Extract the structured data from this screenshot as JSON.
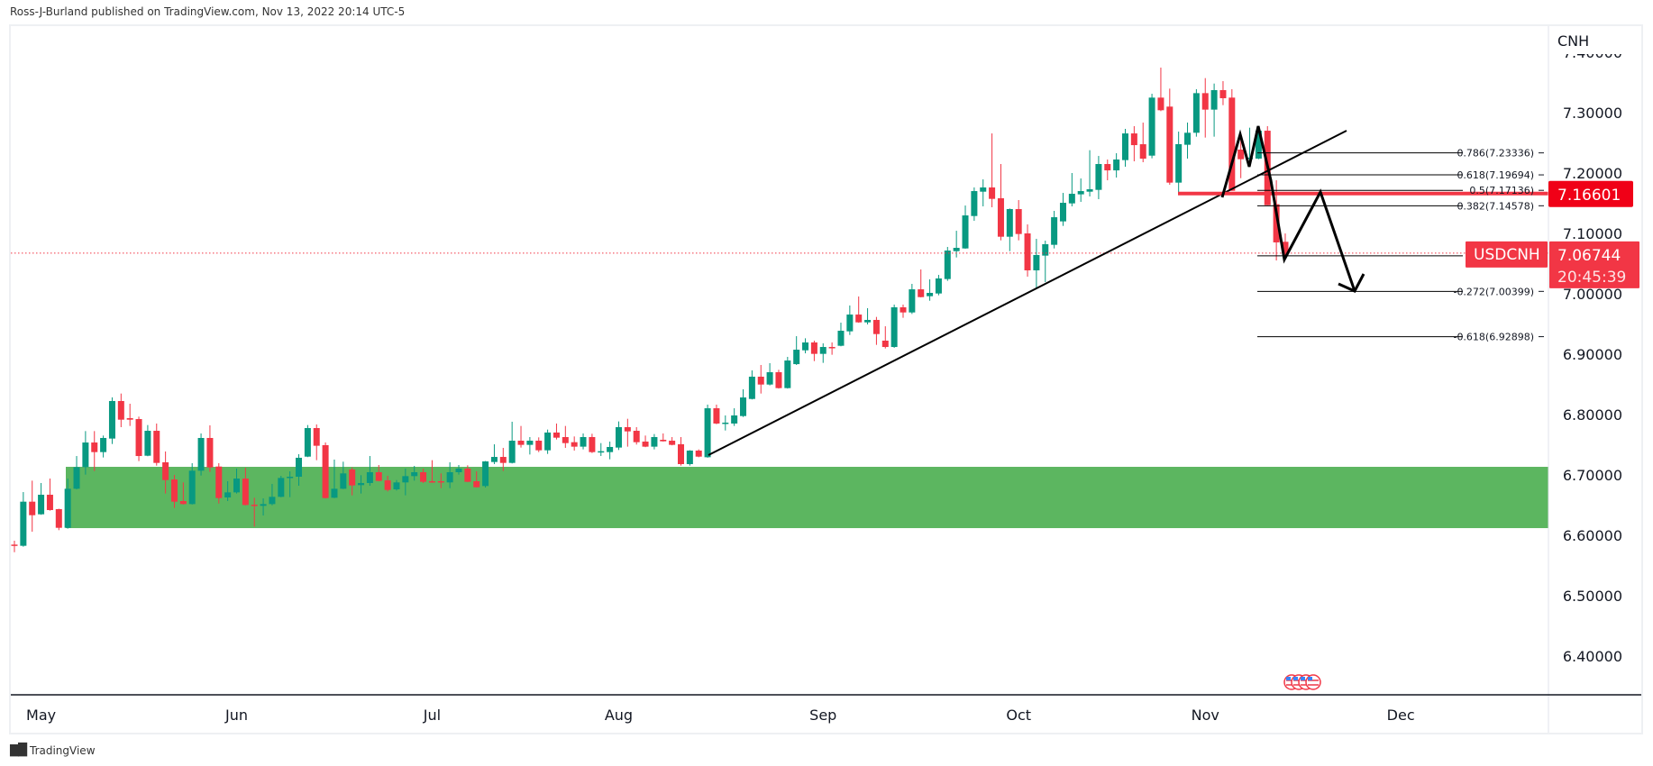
{
  "header": {
    "published": "Ross-J-Burland published on TradingView.com, Nov 13, 2022 20:14 UTC-5"
  },
  "footer": {
    "brand": "TradingView",
    "logo_icon": "tradingview-logo-icon"
  },
  "colors": {
    "up": "#089981",
    "down": "#f23645",
    "zone": "#5cb660",
    "line": "#000000",
    "last_price": "#f23645"
  },
  "chart_data": {
    "type": "candlestick",
    "symbol": "USDCNH",
    "currency_label": "CNH",
    "ylim": [
      6.35,
      7.4
    ],
    "y_ticks": [
      "7.40000",
      "7.30000",
      "7.20000",
      "7.10000",
      "7.00000",
      "6.90000",
      "6.80000",
      "6.70000",
      "6.60000",
      "6.50000",
      "6.40000"
    ],
    "y_tick_values": [
      7.4,
      7.3,
      7.2,
      7.1,
      7.0,
      6.9,
      6.8,
      6.7,
      6.6,
      6.5,
      6.4
    ],
    "x_ticks": [
      "May",
      "Jun",
      "Jul",
      "Aug",
      "Sep",
      "Oct",
      "Nov",
      "Dec"
    ],
    "last_price": {
      "label": "USDCNH",
      "value": "7.06744",
      "price": 7.06744,
      "countdown": "20:45:39"
    },
    "level_line": {
      "value": "7.16601",
      "price": 7.16601
    },
    "support_zone": {
      "top": 6.7134,
      "bottom": 6.6119
    },
    "fib_levels": [
      {
        "label": "0.786(7.23336)",
        "price": 7.23336
      },
      {
        "label": "0.618(7.19694)",
        "price": 7.19694
      },
      {
        "label": "0.5(7.17136)",
        "price": 7.17136
      },
      {
        "label": "0.382(7.14578)",
        "price": 7.14578
      },
      {
        "label": "",
        "price": 7.06296
      },
      {
        "label": "-0.272(7.00399)",
        "price": 7.00399
      },
      {
        "label": "-0.618(6.92898)",
        "price": 6.92898
      }
    ],
    "ohlc": [
      [
        6.5846,
        6.591,
        6.5721,
        6.5836
      ],
      [
        6.5826,
        6.6716,
        6.5811,
        6.6557
      ],
      [
        6.6557,
        6.6905,
        6.606,
        6.6333
      ],
      [
        6.6348,
        6.6866,
        6.634,
        6.6672
      ],
      [
        6.6672,
        6.694,
        6.6408,
        6.6418
      ],
      [
        6.6433,
        6.644,
        6.6085,
        6.6124
      ],
      [
        6.6124,
        6.694,
        6.611,
        6.6771
      ],
      [
        6.6771,
        6.7313,
        6.676,
        6.7129
      ],
      [
        6.7129,
        6.7726,
        6.7005,
        6.7537
      ],
      [
        6.7537,
        6.7726,
        6.7065,
        6.7378
      ],
      [
        6.7378,
        6.7652,
        6.7289,
        6.7612
      ],
      [
        6.7602,
        6.8284,
        6.7512,
        6.8224
      ],
      [
        6.8224,
        6.8348,
        6.7791,
        6.7915
      ],
      [
        6.794,
        6.8179,
        6.7811,
        6.7915
      ],
      [
        6.7925,
        6.7965,
        6.7229,
        6.7313
      ],
      [
        6.7318,
        6.7826,
        6.731,
        6.7731
      ],
      [
        6.7731,
        6.7851,
        6.7154,
        6.7199
      ],
      [
        6.7209,
        6.7388,
        6.6692,
        6.6915
      ],
      [
        6.6925,
        6.6999,
        6.6453,
        6.6557
      ],
      [
        6.6567,
        6.6876,
        6.651,
        6.6517
      ],
      [
        6.6517,
        6.7194,
        6.651,
        6.707
      ],
      [
        6.707,
        6.7687,
        6.699,
        6.7612
      ],
      [
        6.7612,
        6.7821,
        6.705,
        6.7124
      ],
      [
        6.7139,
        6.7194,
        6.6527,
        6.6617
      ],
      [
        6.6627,
        6.6896,
        6.6567,
        6.6711
      ],
      [
        6.6711,
        6.7105,
        6.6692,
        6.694
      ],
      [
        6.694,
        6.7119,
        6.6495,
        6.6502
      ],
      [
        6.6507,
        6.6622,
        6.6144,
        6.6488
      ],
      [
        6.6488,
        6.6612,
        6.6328,
        6.6517
      ],
      [
        6.6517,
        6.6851,
        6.6497,
        6.6637
      ],
      [
        6.6637,
        6.6985,
        6.663,
        6.695
      ],
      [
        6.695,
        6.706,
        6.6632,
        6.697
      ],
      [
        6.697,
        6.7343,
        6.6821,
        6.7284
      ],
      [
        6.7303,
        6.7826,
        6.7295,
        6.7776
      ],
      [
        6.7776,
        6.7836,
        6.7244,
        6.7483
      ],
      [
        6.7493,
        6.7537,
        6.661,
        6.6617
      ],
      [
        6.6622,
        6.7254,
        6.6615,
        6.6771
      ],
      [
        6.6771,
        6.7219,
        6.6765,
        6.7025
      ],
      [
        6.709,
        6.7124,
        6.6662,
        6.6826
      ],
      [
        6.6831,
        6.6995,
        6.6692,
        6.6866
      ],
      [
        6.6866,
        6.7313,
        6.6821,
        6.7045
      ],
      [
        6.7045,
        6.7164,
        6.6895,
        6.6901
      ],
      [
        6.6911,
        6.6985,
        6.6726,
        6.6751
      ],
      [
        6.6761,
        6.6915,
        6.6741,
        6.6876
      ],
      [
        6.6876,
        6.7105,
        6.6662,
        6.698
      ],
      [
        6.698,
        6.7149,
        6.6905,
        6.7045
      ],
      [
        6.7045,
        6.7105,
        6.6866,
        6.6886
      ],
      [
        6.6896,
        6.7244,
        6.687,
        6.6876
      ],
      [
        6.6896,
        6.7025,
        6.6781,
        6.6876
      ],
      [
        6.6876,
        6.7209,
        6.6781,
        6.7045
      ],
      [
        6.7045,
        6.7164,
        6.7005,
        6.7105
      ],
      [
        6.7105,
        6.7159,
        6.688,
        6.6886
      ],
      [
        6.6896,
        6.706,
        6.679,
        6.6796
      ],
      [
        6.6816,
        6.723,
        6.6791,
        6.7224
      ],
      [
        6.7214,
        6.7507,
        6.7179,
        6.7298
      ],
      [
        6.7298,
        6.7448,
        6.7065,
        6.7199
      ],
      [
        6.7199,
        6.7881,
        6.719,
        6.7567
      ],
      [
        6.7567,
        6.7811,
        6.7453,
        6.7498
      ],
      [
        6.7498,
        6.7627,
        6.7338,
        6.7567
      ],
      [
        6.7567,
        6.7622,
        6.7378,
        6.7408
      ],
      [
        6.7408,
        6.7751,
        6.7348,
        6.7702
      ],
      [
        6.7702,
        6.7851,
        6.7587,
        6.7617
      ],
      [
        6.7627,
        6.7811,
        6.7448,
        6.7527
      ],
      [
        6.7542,
        6.7637,
        6.7403,
        6.7468
      ],
      [
        6.7468,
        6.7687,
        6.7423,
        6.7627
      ],
      [
        6.7627,
        6.7682,
        6.7363,
        6.7378
      ],
      [
        6.7378,
        6.7527,
        6.7313,
        6.7393
      ],
      [
        6.7378,
        6.7552,
        6.7259,
        6.7463
      ],
      [
        6.7453,
        6.7886,
        6.7413,
        6.7791
      ],
      [
        6.7791,
        6.793,
        6.7468,
        6.7721
      ],
      [
        6.7731,
        6.7791,
        6.7503,
        6.7542
      ],
      [
        6.7552,
        6.7652,
        6.746,
        6.7468
      ],
      [
        6.7468,
        6.7677,
        6.7423,
        6.7627
      ],
      [
        6.7582,
        6.7687,
        6.7552,
        6.7557
      ],
      [
        6.7567,
        6.7627,
        6.749,
        6.7498
      ],
      [
        6.7508,
        6.7627,
        6.7154,
        6.7179
      ],
      [
        6.7179,
        6.741,
        6.7154,
        6.7403
      ],
      [
        6.7403,
        6.7423,
        6.7293,
        6.7303
      ],
      [
        6.7293,
        6.8164,
        6.7285,
        6.8104
      ],
      [
        6.8104,
        6.8164,
        6.784,
        6.7851
      ],
      [
        6.7856,
        6.7985,
        6.7736,
        6.7866
      ],
      [
        6.7851,
        6.8104,
        6.7811,
        6.7985
      ],
      [
        6.7975,
        6.8418,
        6.796,
        6.8283
      ],
      [
        6.8258,
        6.8731,
        6.825,
        6.8627
      ],
      [
        6.8627,
        6.8821,
        6.8348,
        6.8497
      ],
      [
        6.8497,
        6.8851,
        6.8482,
        6.8701
      ],
      [
        6.8701,
        6.8741,
        6.843,
        6.8438
      ],
      [
        6.8438,
        6.8955,
        6.843,
        6.8895
      ],
      [
        6.8835,
        6.9298,
        6.8821,
        6.9074
      ],
      [
        6.9064,
        6.9263,
        6.9014,
        6.9194
      ],
      [
        6.9194,
        6.9224,
        6.8885,
        6.9005
      ],
      [
        6.9005,
        6.9179,
        6.8856,
        6.9119
      ],
      [
        6.9119,
        6.9194,
        6.899,
        6.9114
      ],
      [
        6.9139,
        6.9522,
        6.913,
        6.9388
      ],
      [
        6.9378,
        6.9806,
        6.9318,
        6.9656
      ],
      [
        6.9656,
        6.9955,
        6.952,
        6.9527
      ],
      [
        6.9527,
        6.9761,
        6.9492,
        6.9567
      ],
      [
        6.9567,
        6.9617,
        6.9154,
        6.9333
      ],
      [
        6.9224,
        6.9462,
        6.9094,
        6.9119
      ],
      [
        6.9119,
        6.9821,
        6.9105,
        6.9776
      ],
      [
        6.9776,
        6.9821,
        6.9602,
        6.9691
      ],
      [
        6.9691,
        7.0164,
        6.9666,
        7.0074
      ],
      [
        7.0074,
        7.0403,
        6.994,
        6.9945
      ],
      [
        6.996,
        7.0239,
        6.9885,
        7.0015
      ],
      [
        7.0005,
        7.0313,
        6.9975,
        7.0254
      ],
      [
        7.0244,
        7.0776,
        7.0214,
        7.0716
      ],
      [
        7.0706,
        7.1044,
        7.0602,
        7.0761
      ],
      [
        7.0751,
        7.1462,
        7.0746,
        7.1298
      ],
      [
        7.1288,
        7.1761,
        7.1209,
        7.1701
      ],
      [
        7.1691,
        7.1895,
        7.1448,
        7.1761
      ],
      [
        7.1761,
        7.2656,
        7.1433,
        7.1572
      ],
      [
        7.1582,
        7.2149,
        7.0885,
        7.0945
      ],
      [
        7.0945,
        7.1413,
        7.0706,
        7.1403
      ],
      [
        7.1403,
        7.1552,
        7.0885,
        7.099
      ],
      [
        7.1,
        7.1149,
        7.0284,
        7.0388
      ],
      [
        7.0388,
        7.091,
        7.0089,
        7.0642
      ],
      [
        7.0632,
        7.088,
        7.0194,
        7.0821
      ],
      [
        7.0811,
        7.1373,
        7.0751,
        7.1268
      ],
      [
        7.1199,
        7.1671,
        7.1124,
        7.1507
      ],
      [
        7.1497,
        7.2,
        7.1448,
        7.1656
      ],
      [
        7.1647,
        7.191,
        7.1522,
        7.1701
      ],
      [
        7.1691,
        7.2378,
        7.1612,
        7.1731
      ],
      [
        7.1721,
        7.2283,
        7.1567,
        7.2149
      ],
      [
        7.2149,
        7.2224,
        7.188,
        7.2044
      ],
      [
        7.2044,
        7.2328,
        7.1925,
        7.2224
      ],
      [
        7.2214,
        7.2731,
        7.2104,
        7.2656
      ],
      [
        7.2656,
        7.2776,
        7.2194,
        7.2462
      ],
      [
        7.2477,
        7.2835,
        7.2179,
        7.2238
      ],
      [
        7.2288,
        7.3313,
        7.2244,
        7.3249
      ],
      [
        7.3249,
        7.3746,
        7.3025,
        7.304
      ],
      [
        7.31,
        7.3398,
        7.1806,
        7.1841
      ],
      [
        7.1841,
        7.2686,
        7.1657,
        7.2478
      ],
      [
        7.2468,
        7.2836,
        7.2239,
        7.2667
      ],
      [
        7.2667,
        7.3388,
        7.2602,
        7.3323
      ],
      [
        7.3323,
        7.3572,
        7.2587,
        7.305
      ],
      [
        7.305,
        7.3482,
        7.2602,
        7.3373
      ],
      [
        7.3373,
        7.3522,
        7.3124,
        7.3239
      ],
      [
        7.3249,
        7.3388,
        7.1706,
        7.1706
      ],
      [
        7.2388,
        7.2652,
        7.1915,
        7.2229
      ],
      [
        7.2239,
        7.2751,
        7.2104,
        7.2254
      ],
      [
        7.2239,
        7.2776,
        7.2229,
        7.2701
      ],
      [
        7.2701,
        7.2776,
        7.1468,
        7.1468
      ],
      [
        7.1483,
        7.188,
        7.0552,
        7.0851
      ],
      [
        7.0861,
        7.0999,
        7.0587,
        7.0647
      ]
    ]
  }
}
